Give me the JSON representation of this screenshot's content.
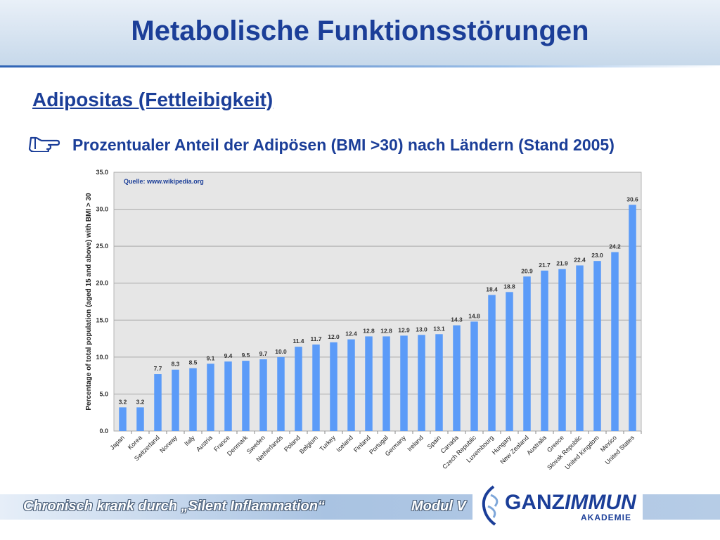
{
  "slide": {
    "title": "Metabolische Funktionsstörungen",
    "subtitle": "Adipositas (Fettleibigkeit)",
    "bullet_icon": "pointing-hand-icon",
    "bullet_text": "Prozentualer Anteil der Adipösen (BMI >30) nach Ländern (Stand 2005)"
  },
  "chart_data": {
    "type": "bar",
    "title": "",
    "source_note": "Quelle: www.wikipedia.org",
    "ylabel": "Percentage of total population (aged 15 and above) with BMI > 30",
    "xlabel": "",
    "ylim": [
      0,
      35
    ],
    "yticks": [
      "0.0",
      "5.0",
      "10.0",
      "15.0",
      "20.0",
      "25.0",
      "30.0",
      "35.0"
    ],
    "grid": true,
    "legend": "none",
    "bar_color": "#5b9bf8",
    "plot_background": "#e6e6e6",
    "categories": [
      "Japan",
      "Korea",
      "Switzerland",
      "Norway",
      "Italy",
      "Austria",
      "France",
      "Denmark",
      "Sweden",
      "Netherlands",
      "Poland",
      "Belgium",
      "Turkey",
      "Iceland",
      "Finland",
      "Portugal",
      "Germany",
      "Ireland",
      "Spain",
      "Canada",
      "Czech Republic",
      "Luxembourg",
      "Hungary",
      "New Zealand",
      "Australia",
      "Greece",
      "Slovak Republic",
      "United Kingdom",
      "Mexico",
      "United States"
    ],
    "values": [
      3.2,
      3.2,
      7.7,
      8.3,
      8.5,
      9.1,
      9.4,
      9.5,
      9.7,
      10.0,
      11.4,
      11.7,
      12.0,
      12.4,
      12.8,
      12.8,
      12.9,
      13.0,
      13.1,
      14.3,
      14.8,
      18.4,
      18.8,
      20.9,
      21.7,
      21.9,
      22.4,
      23.0,
      24.2,
      30.6
    ],
    "data_labels": [
      "3.2",
      "3.2",
      "7.7",
      "8.3",
      "8.5",
      "9.1",
      "9.4",
      "9.5",
      "9.7",
      "10.0",
      "11.4",
      "11.7",
      "12.0",
      "12.4",
      "12.8",
      "12.8",
      "12.9",
      "13.0",
      "13.1",
      "14.3",
      "14.8",
      "18.4",
      "18.8",
      "20.9",
      "21.7",
      "21.9",
      "22.4",
      "23.0",
      "24.2",
      "30.6"
    ]
  },
  "footer": {
    "course_title": "Chronisch krank durch „Silent Inflammation“",
    "module": "Modul V",
    "logo_icon": "ganzimmun-logo-icon",
    "logo_name_part1": "GANZ",
    "logo_name_part2": "IMMUN",
    "logo_sub": "AKADEMIE"
  },
  "colors": {
    "title": "#1b3e98",
    "accent": "#2e63b5"
  }
}
